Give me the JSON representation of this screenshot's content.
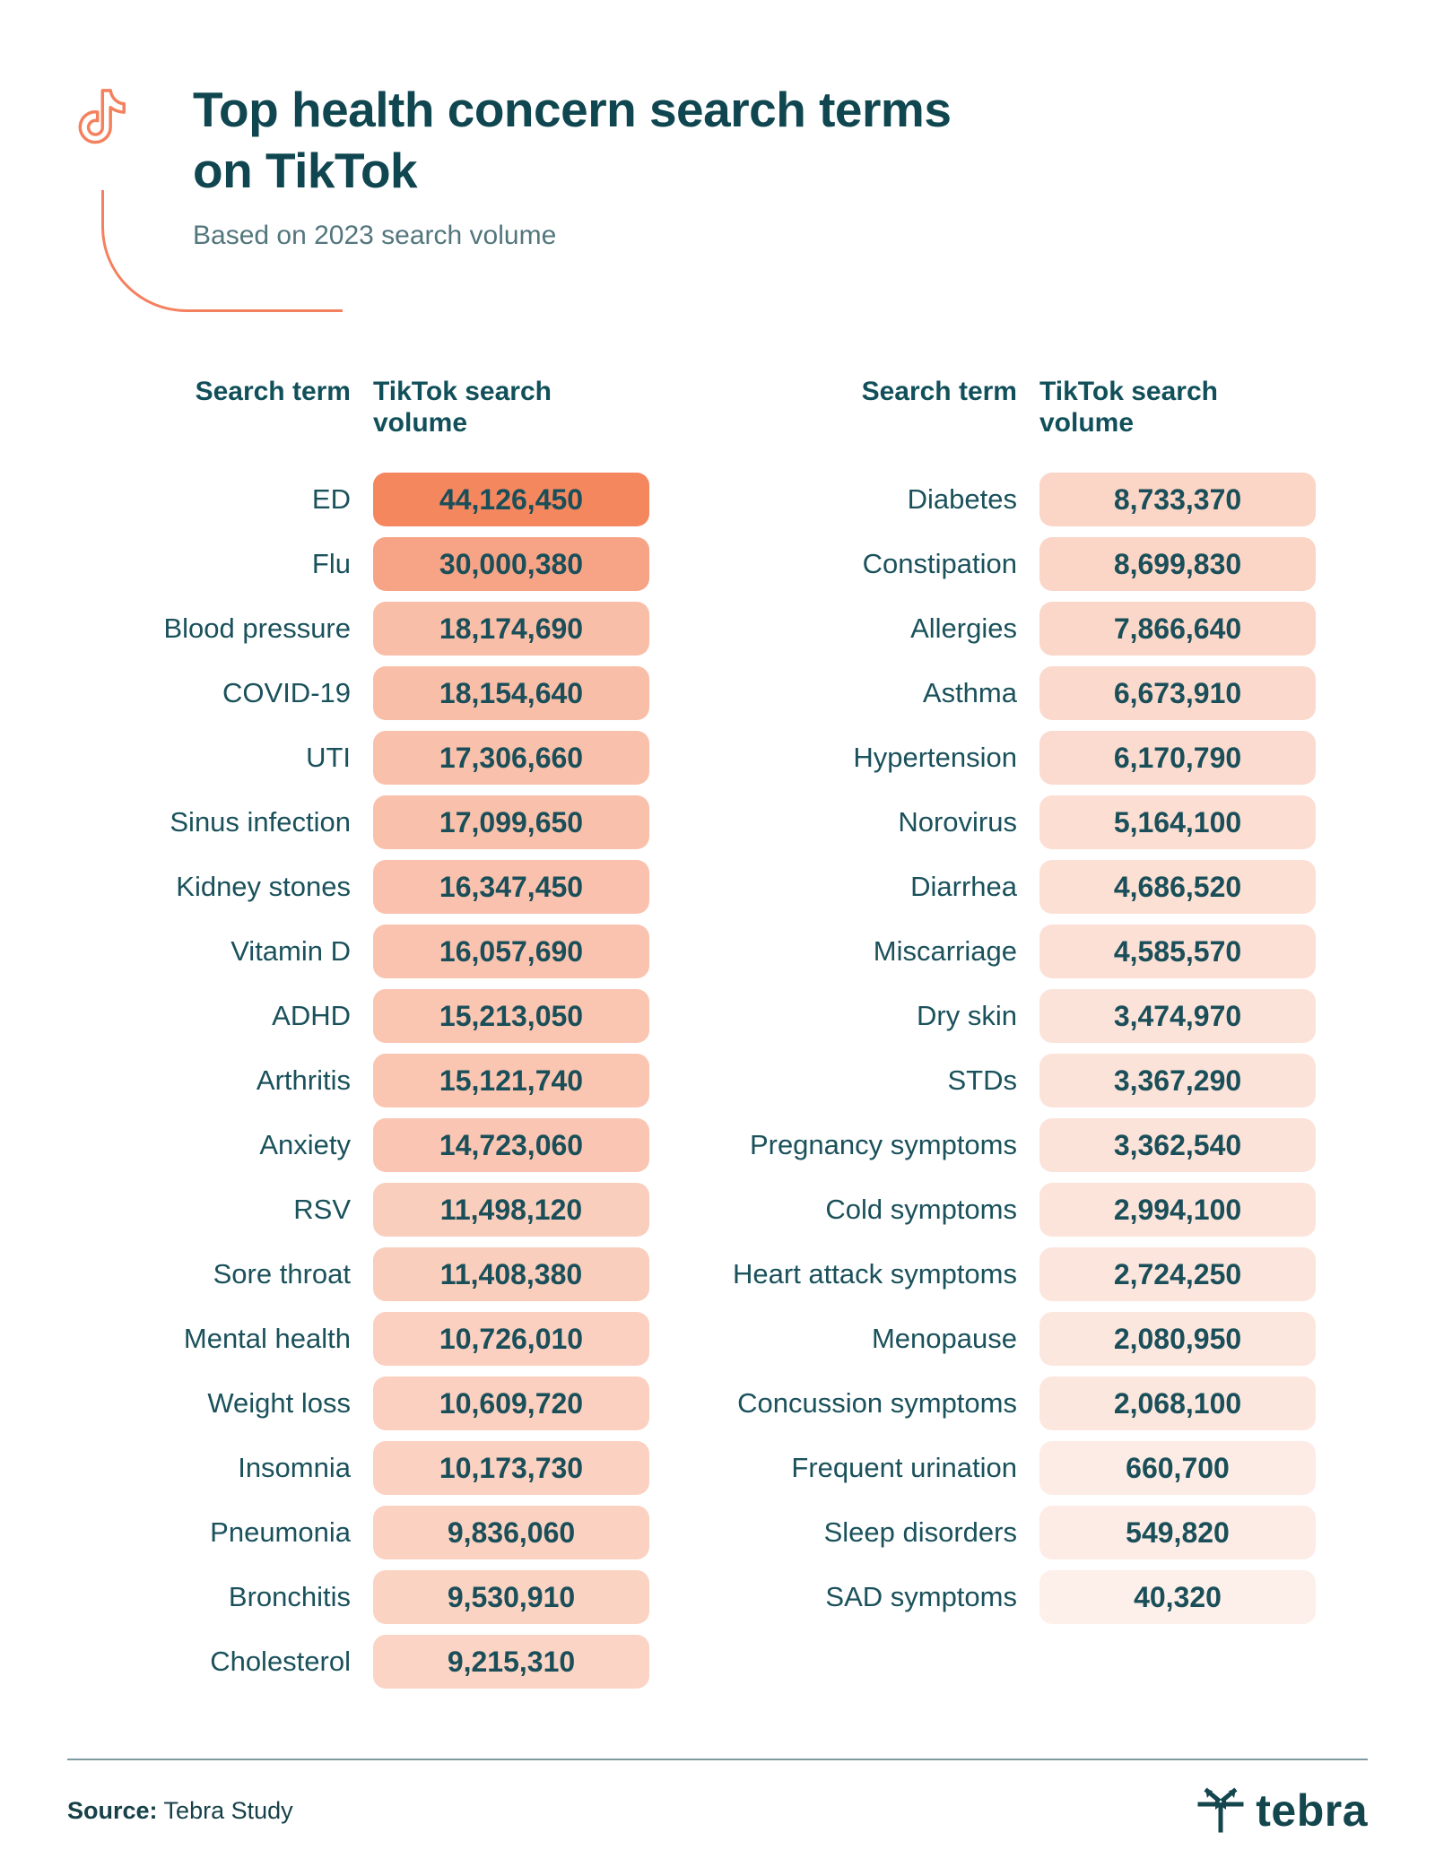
{
  "header": {
    "title_line1": "Top health concern search terms",
    "title_line2": "on TikTok",
    "subtitle": "Based on 2023 search volume"
  },
  "table_headers": {
    "term": "Search term",
    "volume_line1": "TikTok search",
    "volume_line2": "volume"
  },
  "chart_data": {
    "type": "table",
    "title": "Top health concern search terms on TikTok",
    "subtitle": "Based on 2023 search volume",
    "columns": [
      "Search term",
      "TikTok search volume"
    ],
    "color_scale": {
      "max_color": "#F5875F",
      "min_color": "#FDEFE9",
      "max_value": 44126450,
      "gamma": 0.85
    },
    "tables": {
      "left": [
        {
          "term": "ED",
          "volume": 44126450,
          "volume_label": "44,126,450"
        },
        {
          "term": "Flu",
          "volume": 30000380,
          "volume_label": "30,000,380"
        },
        {
          "term": "Blood pressure",
          "volume": 18174690,
          "volume_label": "18,174,690"
        },
        {
          "term": "COVID-19",
          "volume": 18154640,
          "volume_label": "18,154,640"
        },
        {
          "term": "UTI",
          "volume": 17306660,
          "volume_label": "17,306,660"
        },
        {
          "term": "Sinus infection",
          "volume": 17099650,
          "volume_label": "17,099,650"
        },
        {
          "term": "Kidney stones",
          "volume": 16347450,
          "volume_label": "16,347,450"
        },
        {
          "term": "Vitamin D",
          "volume": 16057690,
          "volume_label": "16,057,690"
        },
        {
          "term": "ADHD",
          "volume": 15213050,
          "volume_label": "15,213,050"
        },
        {
          "term": "Arthritis",
          "volume": 15121740,
          "volume_label": "15,121,740"
        },
        {
          "term": "Anxiety",
          "volume": 14723060,
          "volume_label": "14,723,060"
        },
        {
          "term": "RSV",
          "volume": 11498120,
          "volume_label": "11,498,120"
        },
        {
          "term": "Sore throat",
          "volume": 11408380,
          "volume_label": "11,408,380"
        },
        {
          "term": "Mental health",
          "volume": 10726010,
          "volume_label": "10,726,010"
        },
        {
          "term": "Weight loss",
          "volume": 10609720,
          "volume_label": "10,609,720"
        },
        {
          "term": "Insomnia",
          "volume": 10173730,
          "volume_label": "10,173,730"
        },
        {
          "term": "Pneumonia",
          "volume": 9836060,
          "volume_label": "9,836,060"
        },
        {
          "term": "Bronchitis",
          "volume": 9530910,
          "volume_label": "9,530,910"
        },
        {
          "term": "Cholesterol",
          "volume": 9215310,
          "volume_label": "9,215,310"
        }
      ],
      "right": [
        {
          "term": "Diabetes",
          "volume": 8733370,
          "volume_label": "8,733,370"
        },
        {
          "term": "Constipation",
          "volume": 8699830,
          "volume_label": "8,699,830"
        },
        {
          "term": "Allergies",
          "volume": 7866640,
          "volume_label": "7,866,640"
        },
        {
          "term": "Asthma",
          "volume": 6673910,
          "volume_label": "6,673,910"
        },
        {
          "term": "Hypertension",
          "volume": 6170790,
          "volume_label": "6,170,790"
        },
        {
          "term": "Norovirus",
          "volume": 5164100,
          "volume_label": "5,164,100"
        },
        {
          "term": "Diarrhea",
          "volume": 4686520,
          "volume_label": "4,686,520"
        },
        {
          "term": "Miscarriage",
          "volume": 4585570,
          "volume_label": "4,585,570"
        },
        {
          "term": "Dry skin",
          "volume": 3474970,
          "volume_label": "3,474,970"
        },
        {
          "term": "STDs",
          "volume": 3367290,
          "volume_label": "3,367,290"
        },
        {
          "term": "Pregnancy symptoms",
          "volume": 3362540,
          "volume_label": "3,362,540"
        },
        {
          "term": "Cold symptoms",
          "volume": 2994100,
          "volume_label": "2,994,100"
        },
        {
          "term": "Heart attack symptoms",
          "volume": 2724250,
          "volume_label": "2,724,250"
        },
        {
          "term": "Menopause",
          "volume": 2080950,
          "volume_label": "2,080,950"
        },
        {
          "term": "Concussion symptoms",
          "volume": 2068100,
          "volume_label": "2,068,100"
        },
        {
          "term": "Frequent urination",
          "volume": 660700,
          "volume_label": "660,700"
        },
        {
          "term": "Sleep disorders",
          "volume": 549820,
          "volume_label": "549,820"
        },
        {
          "term": "SAD symptoms",
          "volume": 40320,
          "volume_label": "40,320"
        }
      ]
    }
  },
  "footer": {
    "source_label": "Source:",
    "source_value": "Tebra Study",
    "brand": "tebra"
  },
  "colors": {
    "accent": "#F4815E",
    "title_teal": "#0F4650",
    "label_teal": "#1A515B",
    "pill_text": "#1A4F59"
  }
}
